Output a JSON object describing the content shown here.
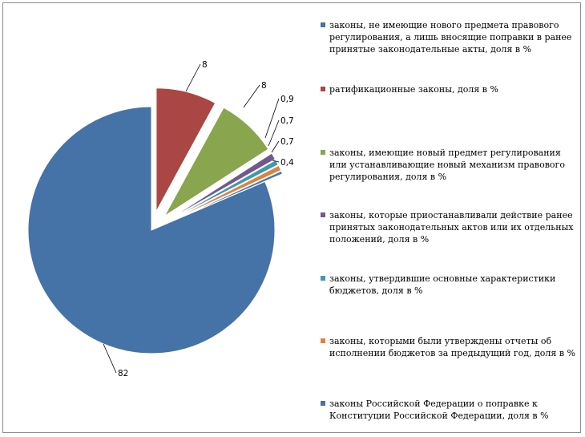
{
  "chart_data": {
    "type": "pie",
    "title": "",
    "series": [
      {
        "name": "законы, не имеющие нового предмета правового регулирования, а лишь вносящие поправки в ранее принятые законодательные акты, доля в %",
        "value": 82,
        "label": "82",
        "color": "#4572A7"
      },
      {
        "name": "ратификационные законы, доля в %",
        "value": 8,
        "label": "8",
        "color": "#AA4643"
      },
      {
        "name": "законы, имеющие новый предмет регулирования или устанавливающие новый механизм правового регулирования, доля в %",
        "value": 8,
        "label": "8",
        "color": "#89A54E"
      },
      {
        "name": "законы, которые приостанавливали действие ранее принятых законодательных актов или их отдельных положений, доля в %",
        "value": 0.9,
        "label": "0,9",
        "color": "#71588F"
      },
      {
        "name": "законы, утвердившие основные характеристики бюджетов, доля в %",
        "value": 0.7,
        "label": "0,7",
        "color": "#4198AF"
      },
      {
        "name": "законы, которыми были утверждены отчеты об исполнении бюджетов за предыдущий год, доля в %",
        "value": 0.7,
        "label": "0,7",
        "color": "#DB843D"
      },
      {
        "name": "законы Российской Федерации о поправке к Конституции Российской Федерации, доля в %",
        "value": 0.4,
        "label": "0,4",
        "color": "#4572A7"
      }
    ],
    "legend_position": "right",
    "exploded": true
  }
}
